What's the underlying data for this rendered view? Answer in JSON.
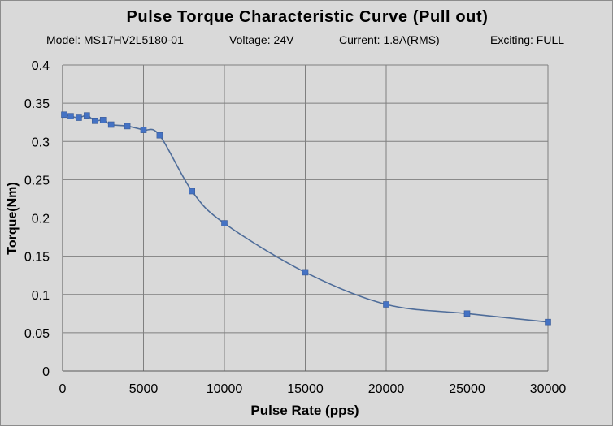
{
  "chart_data": {
    "type": "line",
    "title": "Pulse Torque Characteristic Curve (Pull out)",
    "subtitle": {
      "model": "Model: MS17HV2L5180-01",
      "voltage": "Voltage: 24V",
      "current": "Current: 1.8A(RMS)",
      "exciting": "Exciting: FULL"
    },
    "xlabel": "Pulse Rate (pps)",
    "ylabel": "Torque(Nm)",
    "xlim": [
      0,
      30000
    ],
    "ylim": [
      0,
      0.4
    ],
    "x_ticks": [
      "0",
      "5000",
      "10000",
      "15000",
      "20000",
      "25000",
      "30000"
    ],
    "y_ticks": [
      "0",
      "0.05",
      "0.1",
      "0.15",
      "0.2",
      "0.25",
      "0.3",
      "0.35",
      "0.4"
    ],
    "grid": true,
    "legend": "none",
    "series": [
      {
        "color": "#4f6d9a",
        "marker_color": "#4472c4",
        "x": [
          100,
          500,
          1000,
          1500,
          2000,
          2500,
          3000,
          4000,
          5000,
          6000,
          8000,
          10000,
          15000,
          20000,
          25000,
          30000
        ],
        "y": [
          0.335,
          0.333,
          0.331,
          0.334,
          0.327,
          0.328,
          0.322,
          0.32,
          0.315,
          0.308,
          0.235,
          0.193,
          0.129,
          0.087,
          0.075,
          0.064
        ]
      }
    ]
  }
}
